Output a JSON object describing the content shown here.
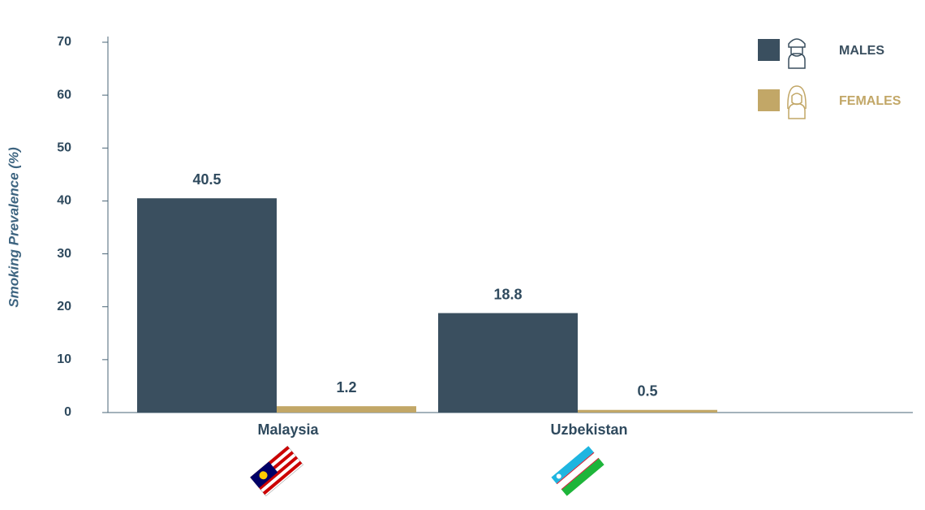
{
  "chart_data": {
    "type": "bar",
    "y_label": "Smoking Prevalence (%)",
    "categories": [
      "Malaysia",
      "Uzbekistan"
    ],
    "series": [
      {
        "name": "MALES",
        "color": "#3a4f5f",
        "values": [
          40.5,
          18.8
        ]
      },
      {
        "name": "FEMALES",
        "color": "#c2a767",
        "values": [
          1.2,
          0.5
        ]
      }
    ],
    "ylim": [
      0,
      70
    ],
    "yticks": [
      0,
      10,
      20,
      30,
      40,
      50,
      60,
      70
    ],
    "legend": "top-right"
  }
}
